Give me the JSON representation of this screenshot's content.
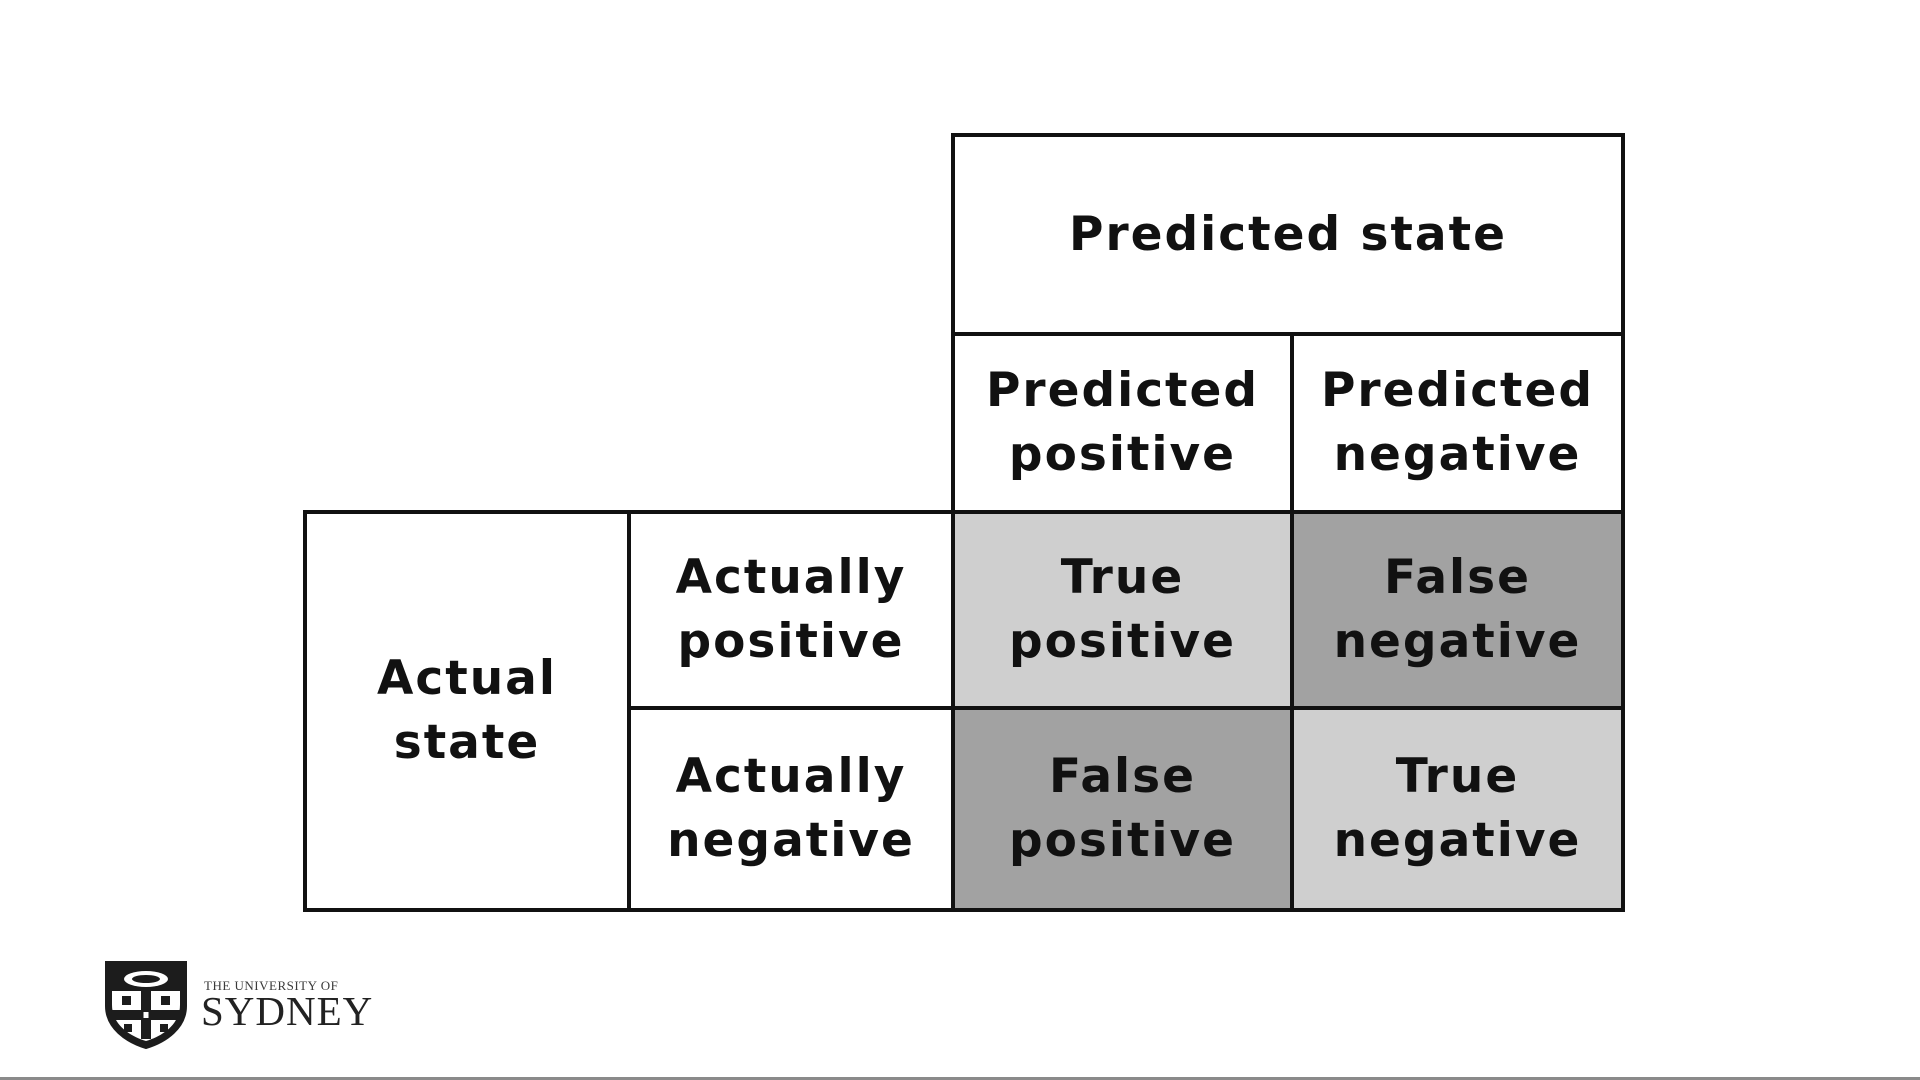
{
  "matrix": {
    "predicted_state": "Predicted state",
    "predicted_positive": "Predicted\npositive",
    "predicted_negative": "Predicted\nnegative",
    "actual_state": "Actual\nstate",
    "actually_positive": "Actually\npositive",
    "actually_negative": "Actually\nnegative",
    "true_positive": "True\npositive",
    "false_negative": "False\nnegative",
    "false_positive": "False\npositive",
    "true_negative": "True\nnegative"
  },
  "colors": {
    "border": "#111111",
    "correct_cell": "#cfcfcf",
    "error_cell": "#a2a2a2",
    "background": "#ffffff"
  },
  "logo": {
    "line1": "THE UNIVERSITY OF",
    "line2": "SYDNEY",
    "crest": "university-crest-icon"
  }
}
